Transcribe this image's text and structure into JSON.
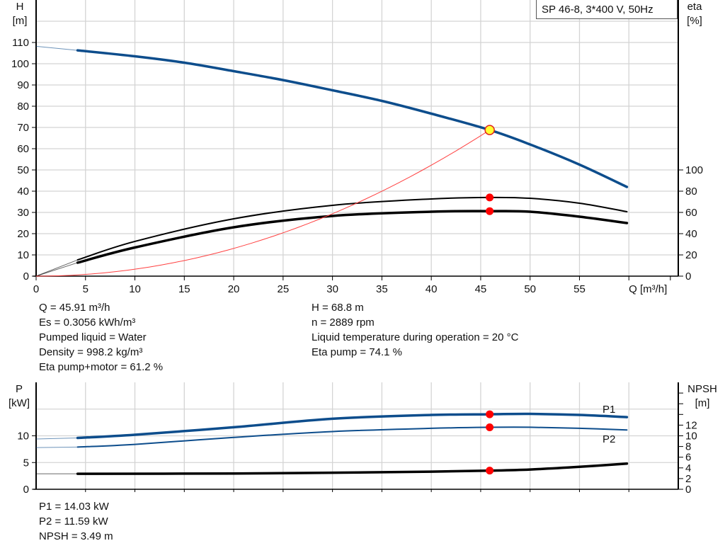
{
  "chart_data": [
    {
      "type": "line",
      "legend_box": "SP 46-8, 3*400 V, 50Hz",
      "xlabel": "Q [m³/h]",
      "ylabel_left": [
        "H",
        "[m]"
      ],
      "ylabel_right": [
        "eta",
        "[%]"
      ],
      "xlim": [
        0,
        65
      ],
      "ylim_left": [
        0,
        130
      ],
      "ylim_right": [
        0,
        260
      ],
      "x_ticks": [
        0,
        5,
        10,
        15,
        20,
        25,
        30,
        35,
        40,
        45,
        50,
        55
      ],
      "y_ticks_left": [
        0,
        10,
        20,
        30,
        40,
        50,
        60,
        70,
        80,
        90,
        100,
        110
      ],
      "y_ticks_right": [
        0,
        20,
        40,
        60,
        80,
        100
      ],
      "grid": true,
      "series": [
        {
          "key": "H",
          "axis": "left",
          "color": "#0d4d8c",
          "extrapolated": [
            [
              0,
              108.2
            ],
            [
              4.2,
              106.3
            ]
          ],
          "x": [
            4.2,
            10,
            15,
            20,
            25,
            30,
            35,
            40,
            45.91,
            50,
            55,
            59.8
          ],
          "y": [
            106.3,
            103.5,
            100.5,
            96.5,
            92.3,
            87.5,
            82.5,
            76.5,
            68.8,
            62,
            52.5,
            42
          ]
        },
        {
          "key": "eta_pump",
          "axis": "right",
          "color": "#000000",
          "extrapolated": [
            [
              0,
              0
            ],
            [
              4.2,
              15.3
            ]
          ],
          "x": [
            4.2,
            10,
            20,
            30,
            40,
            45.91,
            50,
            55,
            59.8
          ],
          "y": [
            15.3,
            32.7,
            54,
            66.7,
            72.7,
            74.1,
            73.3,
            68.7,
            60.7
          ]
        },
        {
          "key": "eta_pump_motor",
          "axis": "right",
          "color": "#000000",
          "extrapolated": [
            [
              0,
              0
            ],
            [
              4.2,
              12.7
            ]
          ],
          "x": [
            4.2,
            10,
            20,
            30,
            40,
            45.91,
            50,
            55,
            59.8
          ],
          "y": [
            12.7,
            27,
            46,
            56.7,
            60.7,
            61.2,
            60.7,
            56,
            50
          ]
        },
        {
          "key": "system_curve",
          "axis": "left",
          "color": "#ff4040",
          "parabola_to": [
            45.91,
            68.8
          ]
        }
      ],
      "duty_point": {
        "Q": 45.91,
        "H": 68.8,
        "eta_pump": 74.1,
        "eta_pump_motor": 61.2
      }
    },
    {
      "type": "line",
      "ylabel_left": [
        "P",
        "[kW]"
      ],
      "ylabel_right": [
        "NPSH",
        "[m]"
      ],
      "xlim": [
        0,
        65
      ],
      "ylim_left": [
        0,
        20
      ],
      "ylim_right": [
        0,
        20
      ],
      "y_ticks_left": [
        0,
        5,
        10
      ],
      "y_ticks_right": [
        0,
        2,
        4,
        6,
        8,
        10,
        12
      ],
      "grid": true,
      "series": [
        {
          "name": "P1",
          "axis": "left",
          "color": "#0d4d8c",
          "extrapolated": [
            [
              0,
              9.4
            ],
            [
              4.2,
              9.6
            ]
          ],
          "x": [
            4.2,
            10,
            20,
            30,
            40,
            45.91,
            50,
            55,
            59.8
          ],
          "y": [
            9.6,
            10.2,
            11.6,
            13.2,
            13.9,
            14.03,
            14.1,
            13.9,
            13.5
          ]
        },
        {
          "name": "P2",
          "axis": "left",
          "color": "#0d4d8c",
          "extrapolated": [
            [
              0,
              7.8
            ],
            [
              4.2,
              7.9
            ]
          ],
          "x": [
            4.2,
            10,
            20,
            30,
            40,
            45.91,
            50,
            55,
            59.8
          ],
          "y": [
            7.9,
            8.4,
            9.7,
            10.8,
            11.4,
            11.59,
            11.6,
            11.4,
            11.1
          ]
        },
        {
          "key": "NPSH",
          "axis": "right",
          "color": "#000000",
          "extrapolated": [
            [
              0,
              2.9
            ],
            [
              4.2,
              2.9
            ]
          ],
          "x": [
            4.2,
            20,
            30,
            40,
            45.91,
            50,
            55,
            59.8
          ],
          "y": [
            2.9,
            2.95,
            3.1,
            3.3,
            3.49,
            3.7,
            4.2,
            4.8
          ]
        }
      ],
      "duty_point": {
        "Q": 45.91,
        "P1": 14.03,
        "P2": 11.59,
        "NPSH": 3.49
      }
    }
  ],
  "info_top_left": [
    "Q = 45.91 m³/h",
    "Es = 0.3056 kWh/m³",
    "Pumped liquid = Water",
    "Density = 998.2 kg/m³",
    "Eta pump+motor = 61.2 %"
  ],
  "info_top_right": [
    "H = 68.8 m",
    "n = 2889 rpm",
    "Liquid temperature during operation = 20 °C",
    "Eta pump = 74.1 %"
  ],
  "info_bottom": [
    "P1 = 14.03 kW",
    "P2 = 11.59 kW",
    "NPSH = 3.49 m"
  ]
}
